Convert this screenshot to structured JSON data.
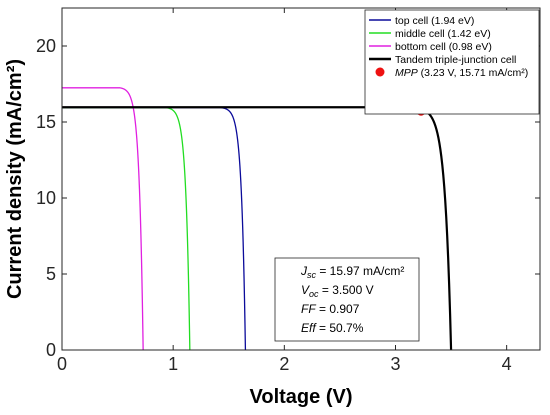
{
  "chart_data": {
    "type": "line",
    "title": "",
    "xlabel": "Voltage (V)",
    "ylabel": "Current density (mA/cm²)",
    "xlim": [
      0,
      4.3
    ],
    "ylim": [
      0,
      22.5
    ],
    "xticks": [
      "0",
      "1",
      "2",
      "3",
      "4"
    ],
    "yticks": [
      "0",
      "5",
      "10",
      "15",
      "20"
    ],
    "grid": false,
    "legend_position": "top-right",
    "series": [
      {
        "name": "top cell (1.94 eV)",
        "color": "#0b0b9a",
        "jsc": 15.95,
        "voc": 1.65,
        "knee_start": 1.42,
        "sharpness": 0.035,
        "x": [
          0,
          0.5,
          1.0,
          1.4,
          1.5,
          1.55,
          1.6,
          1.63,
          1.65
        ],
        "y": [
          15.95,
          15.95,
          15.94,
          15.9,
          15.6,
          14.5,
          10.5,
          5.0,
          0
        ]
      },
      {
        "name": "middle cell (1.42 eV)",
        "color": "#22dd22",
        "jsc": 15.95,
        "voc": 1.15,
        "knee_start": 0.93,
        "sharpness": 0.035,
        "x": [
          0,
          0.5,
          0.9,
          1.0,
          1.05,
          1.1,
          1.13,
          1.15
        ],
        "y": [
          15.95,
          15.95,
          15.9,
          15.5,
          14.3,
          10.0,
          5.0,
          0
        ]
      },
      {
        "name": "bottom cell (0.98 eV)",
        "color": "#e020e0",
        "jsc": 17.25,
        "voc": 0.73,
        "knee_start": 0.52,
        "sharpness": 0.035,
        "x": [
          0,
          0.3,
          0.5,
          0.6,
          0.65,
          0.7,
          0.72,
          0.73
        ],
        "y": [
          17.25,
          17.25,
          17.2,
          16.5,
          14.5,
          8.0,
          3.0,
          0
        ]
      },
      {
        "name": "Tandem triple-junction cell",
        "color": "#000000",
        "jsc": 15.97,
        "voc": 3.5,
        "knee_start": 3.0,
        "sharpness": 0.055,
        "x": [
          0,
          1.0,
          2.0,
          3.0,
          3.23,
          3.3,
          3.4,
          3.47,
          3.5
        ],
        "y": [
          15.97,
          15.97,
          15.96,
          15.9,
          15.71,
          15.2,
          11.0,
          4.0,
          0
        ]
      }
    ],
    "mpp": {
      "label_italic": "MPP",
      "label_rest": " (3.23 V, 15.71 mA/cm²)",
      "x": 3.23,
      "y": 15.71,
      "color": "#ee1111"
    },
    "stats": [
      {
        "sym": "J",
        "sub": "sc",
        "rest": " = 15.97 mA/cm²"
      },
      {
        "sym": "V",
        "sub": "oc",
        "rest": " = 3.500 V"
      },
      {
        "sym": "FF",
        "sub": "",
        "rest": " = 0.907"
      },
      {
        "sym": "Eff",
        "sub": "",
        "rest": " = 50.7%"
      }
    ]
  }
}
